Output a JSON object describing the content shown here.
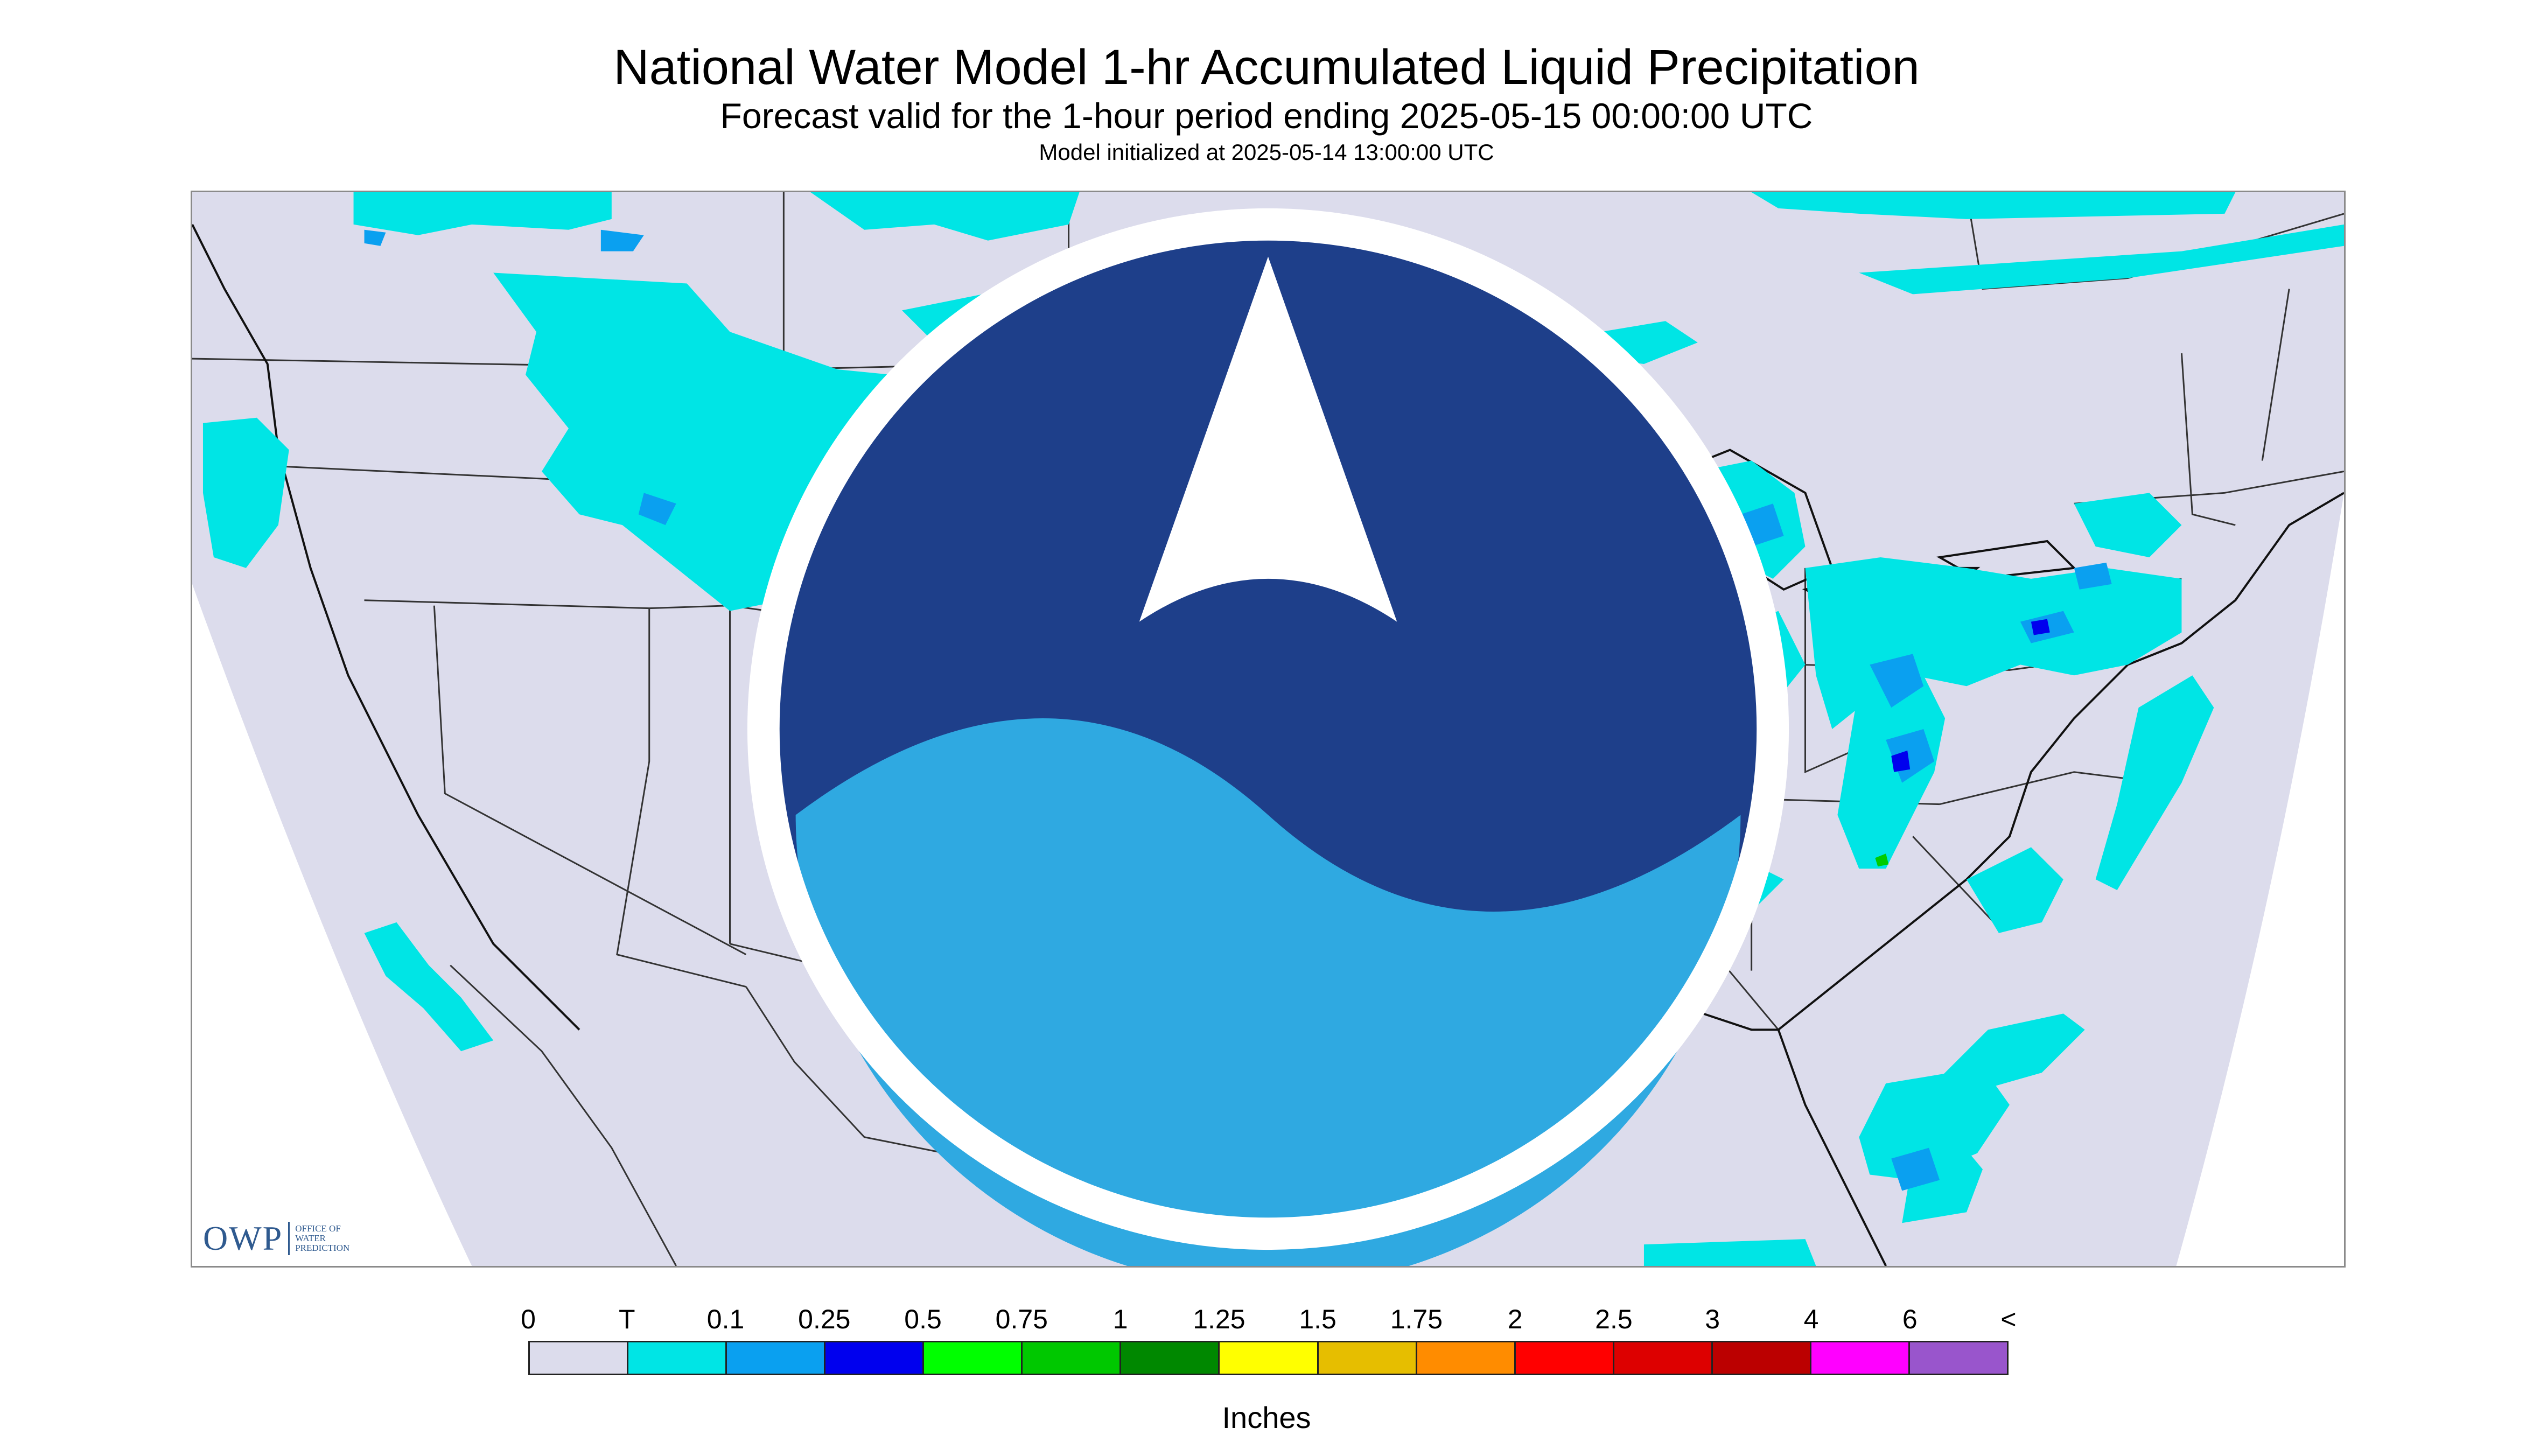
{
  "header": {
    "title": "National Water Model 1-hr Accumulated Liquid Precipitation",
    "subtitle": "Forecast valid for the 1-hour period ending 2025-05-15 00:00:00 UTC",
    "init": "Model initialized at 2025-05-14 13:00:00 UTC"
  },
  "map": {
    "background_color": "#ffffff",
    "projected_area_color": "#dcdcec",
    "boundary_color": "#333333",
    "precip_colors": {
      "trace": "#00e5e5",
      "light": "#0aa0f0",
      "moderate": "#0000ee",
      "heavy": "#00cc00"
    },
    "logos": {
      "owp_mark": "OWP",
      "owp_text": [
        "OFFICE OF",
        "WATER",
        "PREDICTION"
      ],
      "noaa_icon": "noaa-logo-icon"
    }
  },
  "legend": {
    "labels": [
      "0",
      "T",
      "0.1",
      "0.25",
      "0.5",
      "0.75",
      "1",
      "1.25",
      "1.5",
      "1.75",
      "2",
      "2.5",
      "3",
      "4",
      "6",
      "<"
    ],
    "colors": [
      "#dcdcec",
      "#00e5e5",
      "#0aa0f0",
      "#0000ee",
      "#00ff00",
      "#00c800",
      "#008800",
      "#ffff00",
      "#e6be00",
      "#ff8c00",
      "#ff0000",
      "#dd0000",
      "#bb0000",
      "#ff00ff",
      "#9955cc"
    ],
    "units": "Inches"
  }
}
